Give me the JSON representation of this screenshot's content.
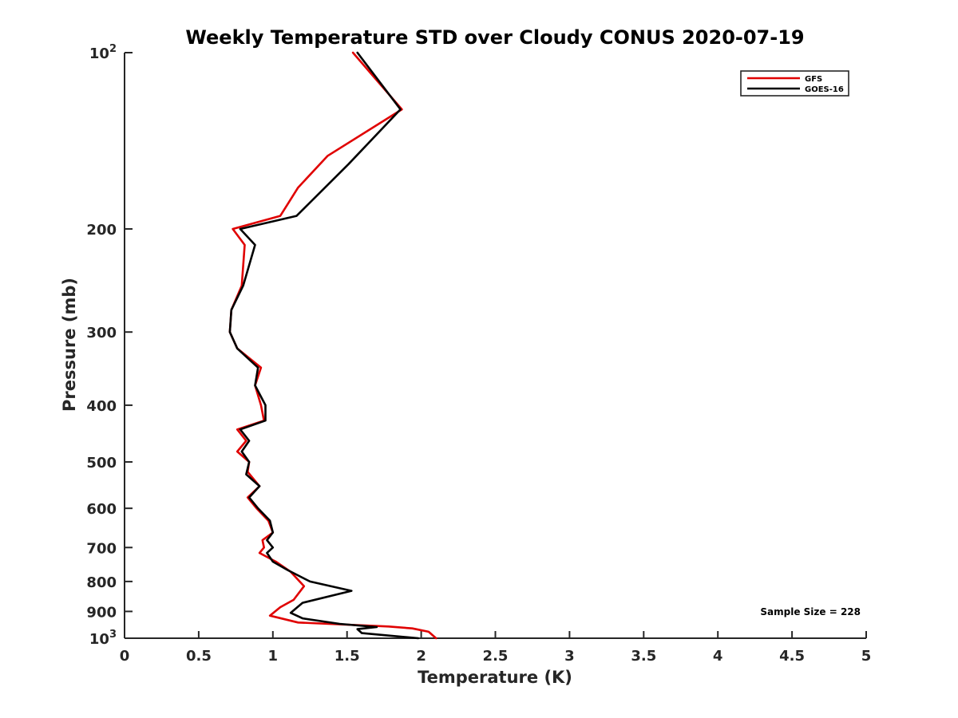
{
  "chart_data": {
    "type": "line",
    "title": "Weekly Temperature STD over Cloudy CONUS 2020-07-19",
    "xlabel": "Temperature (K)",
    "ylabel": "Pressure (mb)",
    "xlim": [
      0,
      5
    ],
    "ylim": [
      100,
      1000
    ],
    "y_scale": "log",
    "y_reversed": true,
    "grid": false,
    "legend_position": "top-right",
    "x_ticks": [
      "0",
      "0.5",
      "1",
      "1.5",
      "2",
      "2.5",
      "3",
      "3.5",
      "4",
      "4.5",
      "5"
    ],
    "y_ticks": [
      {
        "value": 100,
        "base": "10",
        "exp": "2"
      },
      {
        "value": 200,
        "label": "200"
      },
      {
        "value": 300,
        "label": "300"
      },
      {
        "value": 400,
        "label": "400"
      },
      {
        "value": 500,
        "label": "500"
      },
      {
        "value": 600,
        "label": "600"
      },
      {
        "value": 700,
        "label": "700"
      },
      {
        "value": 800,
        "label": "800"
      },
      {
        "value": 900,
        "label": "900"
      },
      {
        "value": 1000,
        "base": "10",
        "exp": "3"
      }
    ],
    "annotation": "Sample Size = 228",
    "series": [
      {
        "name": "GFS",
        "color": "#e00000",
        "points": [
          [
            1.54,
            100
          ],
          [
            1.87,
            125
          ],
          [
            1.37,
            150
          ],
          [
            1.17,
            170
          ],
          [
            1.05,
            190
          ],
          [
            0.73,
            200
          ],
          [
            0.81,
            213
          ],
          [
            0.79,
            250
          ],
          [
            0.72,
            275
          ],
          [
            0.71,
            300
          ],
          [
            0.76,
            320
          ],
          [
            0.92,
            345
          ],
          [
            0.88,
            370
          ],
          [
            0.92,
            400
          ],
          [
            0.94,
            425
          ],
          [
            0.76,
            440
          ],
          [
            0.82,
            460
          ],
          [
            0.76,
            480
          ],
          [
            0.84,
            500
          ],
          [
            0.83,
            520
          ],
          [
            0.91,
            550
          ],
          [
            0.83,
            575
          ],
          [
            0.89,
            600
          ],
          [
            0.97,
            630
          ],
          [
            1.0,
            660
          ],
          [
            0.93,
            680
          ],
          [
            0.94,
            700
          ],
          [
            0.91,
            715
          ],
          [
            1.02,
            740
          ],
          [
            1.12,
            770
          ],
          [
            1.21,
            815
          ],
          [
            1.14,
            860
          ],
          [
            1.05,
            885
          ],
          [
            0.98,
            915
          ],
          [
            1.17,
            940
          ],
          [
            1.78,
            955
          ],
          [
            1.94,
            962
          ],
          [
            2.05,
            975
          ],
          [
            2.1,
            1000
          ]
        ]
      },
      {
        "name": "GOES-16",
        "color": "#000000",
        "points": [
          [
            1.57,
            100
          ],
          [
            1.86,
            125
          ],
          [
            1.51,
            155
          ],
          [
            1.16,
            190
          ],
          [
            0.78,
            200
          ],
          [
            0.88,
            213
          ],
          [
            0.8,
            250
          ],
          [
            0.72,
            275
          ],
          [
            0.71,
            300
          ],
          [
            0.76,
            320
          ],
          [
            0.9,
            345
          ],
          [
            0.88,
            370
          ],
          [
            0.95,
            400
          ],
          [
            0.95,
            425
          ],
          [
            0.78,
            440
          ],
          [
            0.84,
            460
          ],
          [
            0.79,
            480
          ],
          [
            0.84,
            500
          ],
          [
            0.82,
            525
          ],
          [
            0.91,
            550
          ],
          [
            0.84,
            575
          ],
          [
            0.9,
            600
          ],
          [
            0.98,
            630
          ],
          [
            1.0,
            660
          ],
          [
            0.96,
            680
          ],
          [
            1.0,
            700
          ],
          [
            0.96,
            715
          ],
          [
            1.0,
            740
          ],
          [
            1.1,
            765
          ],
          [
            1.25,
            800
          ],
          [
            1.53,
            830
          ],
          [
            1.2,
            870
          ],
          [
            1.12,
            905
          ],
          [
            1.2,
            925
          ],
          [
            1.45,
            945
          ],
          [
            1.7,
            957
          ],
          [
            1.57,
            965
          ],
          [
            1.6,
            980
          ],
          [
            1.98,
            1000
          ]
        ]
      }
    ]
  }
}
